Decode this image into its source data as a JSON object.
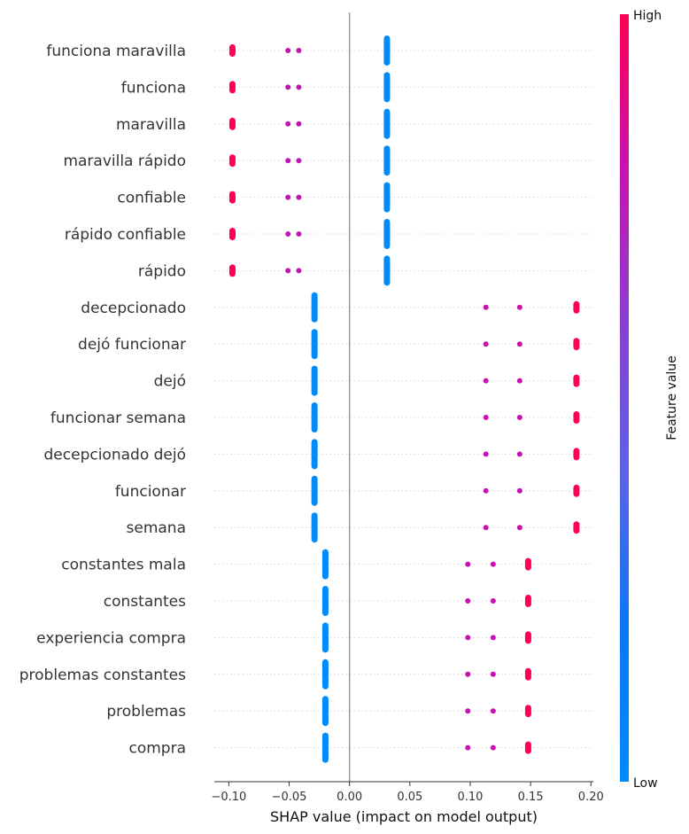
{
  "chart_data": {
    "type": "scatter",
    "subtype": "shap-beeswarm",
    "title": "",
    "xlabel": "SHAP value (impact on model output)",
    "xlim": [
      -0.112,
      0.202
    ],
    "xticks": [
      -0.1,
      -0.05,
      0.0,
      0.05,
      0.1,
      0.15,
      0.2
    ],
    "xtick_labels": [
      "−0.10",
      "−0.05",
      "0.00",
      "0.05",
      "0.10",
      "0.15",
      "0.20"
    ],
    "zero_line": true,
    "colorbar": {
      "label": "Feature value",
      "high_label": "High",
      "low_label": "Low",
      "high_color": "#ff0052",
      "low_color": "#008bfb"
    },
    "features": [
      {
        "name": "funciona maravilla",
        "points": [
          {
            "x": -0.097,
            "v": 1,
            "n": 10
          },
          {
            "x": -0.051,
            "v": 0.78,
            "n": 1
          },
          {
            "x": -0.042,
            "v": 0.78,
            "n": 1
          },
          {
            "x": 0.031,
            "v": 0,
            "n": 80
          }
        ]
      },
      {
        "name": "funciona",
        "points": [
          {
            "x": -0.097,
            "v": 1,
            "n": 10
          },
          {
            "x": -0.051,
            "v": 0.78,
            "n": 1
          },
          {
            "x": -0.042,
            "v": 0.78,
            "n": 1
          },
          {
            "x": 0.031,
            "v": 0,
            "n": 80
          }
        ]
      },
      {
        "name": "maravilla",
        "points": [
          {
            "x": -0.097,
            "v": 1,
            "n": 10
          },
          {
            "x": -0.051,
            "v": 0.78,
            "n": 1
          },
          {
            "x": -0.042,
            "v": 0.78,
            "n": 1
          },
          {
            "x": 0.031,
            "v": 0,
            "n": 80
          }
        ]
      },
      {
        "name": "maravilla rápido",
        "points": [
          {
            "x": -0.097,
            "v": 1,
            "n": 10
          },
          {
            "x": -0.051,
            "v": 0.78,
            "n": 1
          },
          {
            "x": -0.042,
            "v": 0.78,
            "n": 1
          },
          {
            "x": 0.031,
            "v": 0,
            "n": 80
          }
        ]
      },
      {
        "name": "confiable",
        "points": [
          {
            "x": -0.097,
            "v": 1,
            "n": 10
          },
          {
            "x": -0.051,
            "v": 0.78,
            "n": 1
          },
          {
            "x": -0.042,
            "v": 0.78,
            "n": 1
          },
          {
            "x": 0.031,
            "v": 0,
            "n": 80
          }
        ]
      },
      {
        "name": "rápido confiable",
        "points": [
          {
            "x": -0.097,
            "v": 1,
            "n": 10
          },
          {
            "x": -0.051,
            "v": 0.78,
            "n": 1
          },
          {
            "x": -0.042,
            "v": 0.78,
            "n": 1
          },
          {
            "x": 0.031,
            "v": 0,
            "n": 80
          }
        ]
      },
      {
        "name": "rápido",
        "points": [
          {
            "x": -0.097,
            "v": 1,
            "n": 10
          },
          {
            "x": -0.051,
            "v": 0.78,
            "n": 1
          },
          {
            "x": -0.042,
            "v": 0.78,
            "n": 1
          },
          {
            "x": 0.031,
            "v": 0,
            "n": 80
          }
        ]
      },
      {
        "name": "decepcionado",
        "points": [
          {
            "x": -0.029,
            "v": 0,
            "n": 80
          },
          {
            "x": 0.113,
            "v": 0.8,
            "n": 1
          },
          {
            "x": 0.141,
            "v": 0.8,
            "n": 1
          },
          {
            "x": 0.188,
            "v": 1,
            "n": 10
          }
        ]
      },
      {
        "name": "dejó funcionar",
        "points": [
          {
            "x": -0.029,
            "v": 0,
            "n": 80
          },
          {
            "x": 0.113,
            "v": 0.8,
            "n": 1
          },
          {
            "x": 0.141,
            "v": 0.8,
            "n": 1
          },
          {
            "x": 0.188,
            "v": 1,
            "n": 10
          }
        ]
      },
      {
        "name": "dejó",
        "points": [
          {
            "x": -0.029,
            "v": 0,
            "n": 80
          },
          {
            "x": 0.113,
            "v": 0.8,
            "n": 1
          },
          {
            "x": 0.141,
            "v": 0.8,
            "n": 1
          },
          {
            "x": 0.188,
            "v": 1,
            "n": 10
          }
        ]
      },
      {
        "name": "funcionar semana",
        "points": [
          {
            "x": -0.029,
            "v": 0,
            "n": 80
          },
          {
            "x": 0.113,
            "v": 0.8,
            "n": 1
          },
          {
            "x": 0.141,
            "v": 0.8,
            "n": 1
          },
          {
            "x": 0.188,
            "v": 1,
            "n": 10
          }
        ]
      },
      {
        "name": "decepcionado dejó",
        "points": [
          {
            "x": -0.029,
            "v": 0,
            "n": 80
          },
          {
            "x": 0.113,
            "v": 0.8,
            "n": 1
          },
          {
            "x": 0.141,
            "v": 0.8,
            "n": 1
          },
          {
            "x": 0.188,
            "v": 1,
            "n": 10
          }
        ]
      },
      {
        "name": "funcionar",
        "points": [
          {
            "x": -0.029,
            "v": 0,
            "n": 80
          },
          {
            "x": 0.113,
            "v": 0.8,
            "n": 1
          },
          {
            "x": 0.141,
            "v": 0.8,
            "n": 1
          },
          {
            "x": 0.188,
            "v": 1,
            "n": 10
          }
        ]
      },
      {
        "name": "semana",
        "points": [
          {
            "x": -0.029,
            "v": 0,
            "n": 80
          },
          {
            "x": 0.113,
            "v": 0.8,
            "n": 1
          },
          {
            "x": 0.141,
            "v": 0.8,
            "n": 1
          },
          {
            "x": 0.188,
            "v": 1,
            "n": 10
          }
        ]
      },
      {
        "name": "constantes mala",
        "points": [
          {
            "x": -0.02,
            "v": 0,
            "n": 80
          },
          {
            "x": 0.098,
            "v": 0.8,
            "n": 1
          },
          {
            "x": 0.119,
            "v": 0.8,
            "n": 1
          },
          {
            "x": 0.148,
            "v": 1,
            "n": 10
          }
        ]
      },
      {
        "name": "constantes",
        "points": [
          {
            "x": -0.02,
            "v": 0,
            "n": 80
          },
          {
            "x": 0.098,
            "v": 0.8,
            "n": 1
          },
          {
            "x": 0.119,
            "v": 0.8,
            "n": 1
          },
          {
            "x": 0.148,
            "v": 1,
            "n": 10
          }
        ]
      },
      {
        "name": "experiencia compra",
        "points": [
          {
            "x": -0.02,
            "v": 0,
            "n": 80
          },
          {
            "x": 0.098,
            "v": 0.8,
            "n": 1
          },
          {
            "x": 0.119,
            "v": 0.8,
            "n": 1
          },
          {
            "x": 0.148,
            "v": 1,
            "n": 10
          }
        ]
      },
      {
        "name": "problemas constantes",
        "points": [
          {
            "x": -0.02,
            "v": 0,
            "n": 80
          },
          {
            "x": 0.098,
            "v": 0.8,
            "n": 1
          },
          {
            "x": 0.119,
            "v": 0.8,
            "n": 1
          },
          {
            "x": 0.148,
            "v": 1,
            "n": 10
          }
        ]
      },
      {
        "name": "problemas",
        "points": [
          {
            "x": -0.02,
            "v": 0,
            "n": 80
          },
          {
            "x": 0.098,
            "v": 0.8,
            "n": 1
          },
          {
            "x": 0.119,
            "v": 0.8,
            "n": 1
          },
          {
            "x": 0.148,
            "v": 1,
            "n": 10
          }
        ]
      },
      {
        "name": "compra",
        "points": [
          {
            "x": -0.02,
            "v": 0,
            "n": 80
          },
          {
            "x": 0.098,
            "v": 0.8,
            "n": 1
          },
          {
            "x": 0.119,
            "v": 0.8,
            "n": 1
          },
          {
            "x": 0.148,
            "v": 1,
            "n": 10
          }
        ]
      }
    ]
  }
}
